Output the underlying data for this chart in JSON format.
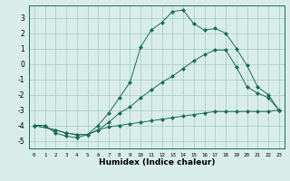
{
  "title": "",
  "xlabel": "Humidex (Indice chaleur)",
  "bg_color": "#d9ede8",
  "grid_color": "#aacfc7",
  "line_color": "#1a6b5a",
  "xlim": [
    -0.5,
    23.5
  ],
  "ylim": [
    -5.5,
    3.8
  ],
  "xticks": [
    0,
    1,
    2,
    3,
    4,
    5,
    6,
    7,
    8,
    9,
    10,
    11,
    12,
    13,
    14,
    15,
    16,
    17,
    18,
    19,
    20,
    21,
    22,
    23
  ],
  "yticks": [
    -5,
    -4,
    -3,
    -2,
    -1,
    0,
    1,
    2,
    3
  ],
  "line1_x": [
    0,
    1,
    2,
    3,
    4,
    5,
    6,
    7,
    8,
    9,
    10,
    11,
    12,
    13,
    14,
    15,
    16,
    17,
    18,
    19,
    20,
    21,
    22,
    23
  ],
  "line1_y": [
    -4.0,
    -4.0,
    -4.5,
    -4.7,
    -4.8,
    -4.6,
    -4.3,
    -4.1,
    -4.0,
    -3.9,
    -3.8,
    -3.7,
    -3.6,
    -3.5,
    -3.4,
    -3.3,
    -3.2,
    -3.1,
    -3.1,
    -3.1,
    -3.1,
    -3.1,
    -3.1,
    -3.0
  ],
  "line2_x": [
    0,
    2,
    3,
    4,
    5,
    6,
    7,
    8,
    9,
    10,
    11,
    12,
    13,
    14,
    15,
    16,
    17,
    18,
    19,
    20,
    21,
    22,
    23
  ],
  "line2_y": [
    -4.0,
    -4.3,
    -4.5,
    -4.6,
    -4.6,
    -4.3,
    -3.8,
    -3.2,
    -2.8,
    -2.2,
    -1.7,
    -1.2,
    -0.8,
    -0.3,
    0.2,
    0.6,
    0.9,
    0.9,
    -0.2,
    -1.5,
    -1.9,
    -2.2,
    -3.0
  ],
  "line3_x": [
    0,
    2,
    3,
    4,
    5,
    6,
    7,
    8,
    9,
    10,
    11,
    12,
    13,
    14,
    15,
    16,
    17,
    18,
    19,
    20,
    21,
    22,
    23
  ],
  "line3_y": [
    -4.0,
    -4.3,
    -4.5,
    -4.6,
    -4.6,
    -4.0,
    -3.2,
    -2.2,
    -1.2,
    1.1,
    2.2,
    2.7,
    3.4,
    3.5,
    2.6,
    2.2,
    2.3,
    2.0,
    1.0,
    -0.1,
    -1.5,
    -2.0,
    -3.0
  ]
}
